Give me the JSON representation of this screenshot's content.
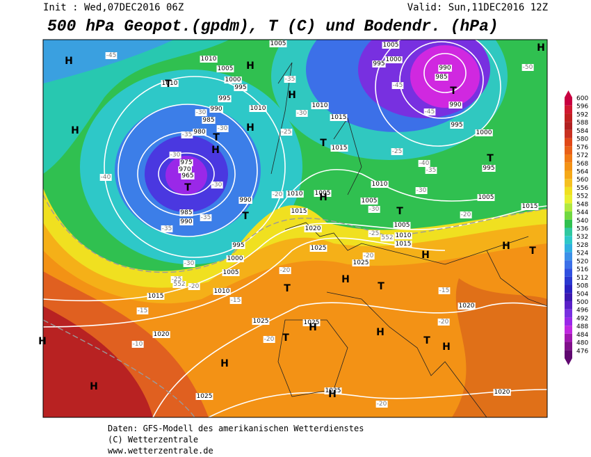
{
  "header": {
    "init": "Init : Wed,07DEC2016 06Z",
    "valid": "Valid: Sun,11DEC2016 12Z",
    "title": "500 hPa Geopot.(gpdm), T (C) und Bodendr. (hPa)"
  },
  "colorbar": {
    "levels": [
      600,
      596,
      592,
      588,
      584,
      580,
      576,
      572,
      568,
      564,
      560,
      556,
      552,
      548,
      544,
      540,
      536,
      532,
      528,
      524,
      520,
      516,
      512,
      508,
      504,
      500,
      496,
      492,
      488,
      484,
      480,
      476
    ]
  },
  "map": {
    "pressure_labels": [
      1005,
      1005,
      1010,
      1005,
      995,
      1000,
      990,
      985,
      1010,
      1000,
      995,
      995,
      990,
      985,
      980,
      975,
      970,
      965,
      990,
      995,
      1010,
      1010,
      1015,
      1015,
      1000,
      995,
      1010,
      1005,
      1010,
      1005,
      1005,
      1015,
      990,
      985,
      990,
      995,
      1000,
      1005,
      1015,
      1020,
      1025,
      1025,
      1005,
      1010,
      1015,
      1010,
      1015,
      1020,
      1025,
      1025,
      1020,
      1025,
      1025,
      1020
    ],
    "temperature_labels": [
      -45,
      -50,
      -35,
      -45,
      -45,
      -30,
      -25,
      -30,
      -30,
      -35,
      -30,
      -30,
      -35,
      -35,
      -40,
      -40,
      -35,
      -25,
      -30,
      -30,
      -25,
      -20,
      -20,
      -30,
      -25,
      -20,
      -20,
      -15,
      -15,
      -20,
      -15,
      -10,
      -20,
      -20,
      -20
    ],
    "geopotential_labels": [
      552,
      552
    ],
    "centers": [
      "H",
      "T",
      "H",
      "H",
      "T",
      "H",
      "H",
      "H",
      "T",
      "T",
      "T",
      "H",
      "T",
      "T",
      "H",
      "T",
      "H",
      "H",
      "T",
      "T",
      "H",
      "T",
      "H",
      "H",
      "H",
      "T",
      "H",
      "H",
      "T",
      "H",
      "H"
    ]
  },
  "footer": {
    "lines": [
      "Daten: GFS-Modell des amerikanischen Wetterdienstes",
      "(C) Wetterzentrale",
      "www.wetterzentrale.de"
    ]
  }
}
